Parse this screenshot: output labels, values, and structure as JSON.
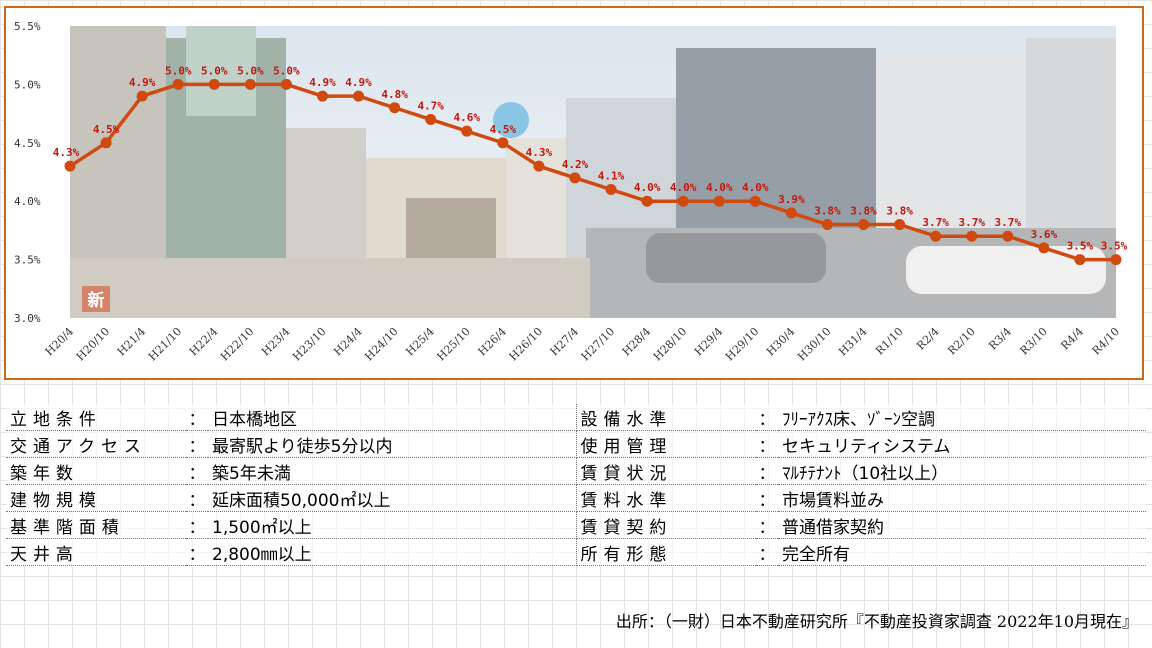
{
  "chart_data": {
    "type": "line",
    "categories": [
      "H20/4",
      "H20/10",
      "H21/4",
      "H21/10",
      "H22/4",
      "H22/10",
      "H23/4",
      "H23/10",
      "H24/4",
      "H24/10",
      "H25/4",
      "H25/10",
      "H26/4",
      "H26/10",
      "H27/4",
      "H27/10",
      "H28/4",
      "H28/10",
      "H29/4",
      "H29/10",
      "H30/4",
      "H30/10",
      "H31/4",
      "R1/10",
      "R2/4",
      "R2/10",
      "R3/4",
      "R3/10",
      "R4/4",
      "R4/10"
    ],
    "values": [
      4.3,
      4.5,
      4.9,
      5.0,
      5.0,
      5.0,
      5.0,
      4.9,
      4.9,
      4.8,
      4.7,
      4.6,
      4.5,
      4.3,
      4.2,
      4.1,
      4.0,
      4.0,
      4.0,
      4.0,
      3.9,
      3.8,
      3.8,
      3.8,
      3.7,
      3.7,
      3.7,
      3.6,
      3.5,
      3.5
    ],
    "data_labels": [
      "4.3%",
      "4.5%",
      "4.9%",
      "5.0%",
      "5.0%",
      "5.0%",
      "5.0%",
      "4.9%",
      "4.9%",
      "4.8%",
      "4.7%",
      "4.6%",
      "4.5%",
      "4.3%",
      "4.2%",
      "4.1%",
      "4.0%",
      "4.0%",
      "4.0%",
      "4.0%",
      "3.9%",
      "3.8%",
      "3.8%",
      "3.8%",
      "3.7%",
      "3.7%",
      "3.7%",
      "3.6%",
      "3.5%",
      "3.5%"
    ],
    "y_ticks": [
      "5.5%",
      "5.0%",
      "4.5%",
      "4.0%",
      "3.5%",
      "3.0%"
    ],
    "y_tick_values": [
      5.5,
      5.0,
      4.5,
      4.0,
      3.5,
      3.0
    ],
    "ylim": [
      3.0,
      5.5
    ],
    "line_color": "#d04a10",
    "label_color": "#c0190d",
    "background_photo_badge": "新"
  },
  "conditions": {
    "left": [
      {
        "key": "立地条件",
        "value": "日本橋地区"
      },
      {
        "key": "交通アクセス",
        "value": "最寄駅より徒歩5分以内"
      },
      {
        "key": "築年数",
        "value": "築5年未満"
      },
      {
        "key": "建物規模",
        "value": "延床面積50,000㎡以上"
      },
      {
        "key": "基準階面積",
        "value": "1,500㎡以上"
      },
      {
        "key": "天井高",
        "value": "2,800㎜以上"
      }
    ],
    "right": [
      {
        "key": "設備水準",
        "value": "ﾌﾘｰｱｸｽ床、ｿﾞｰﾝ空調"
      },
      {
        "key": "使用管理",
        "value": "セキュリティシステム"
      },
      {
        "key": "賃貸状況",
        "value": "ﾏﾙﾁﾃﾅﾝﾄ（10社以上）"
      },
      {
        "key": "賃料水準",
        "value": "市場賃料並み"
      },
      {
        "key": "賃貸契約",
        "value": "普通借家契約"
      },
      {
        "key": "所有形態",
        "value": "完全所有"
      }
    ],
    "colon": "："
  },
  "source": "出所：（一財）日本不動産研究所『不動産投資家調査 2022年10月現在』"
}
